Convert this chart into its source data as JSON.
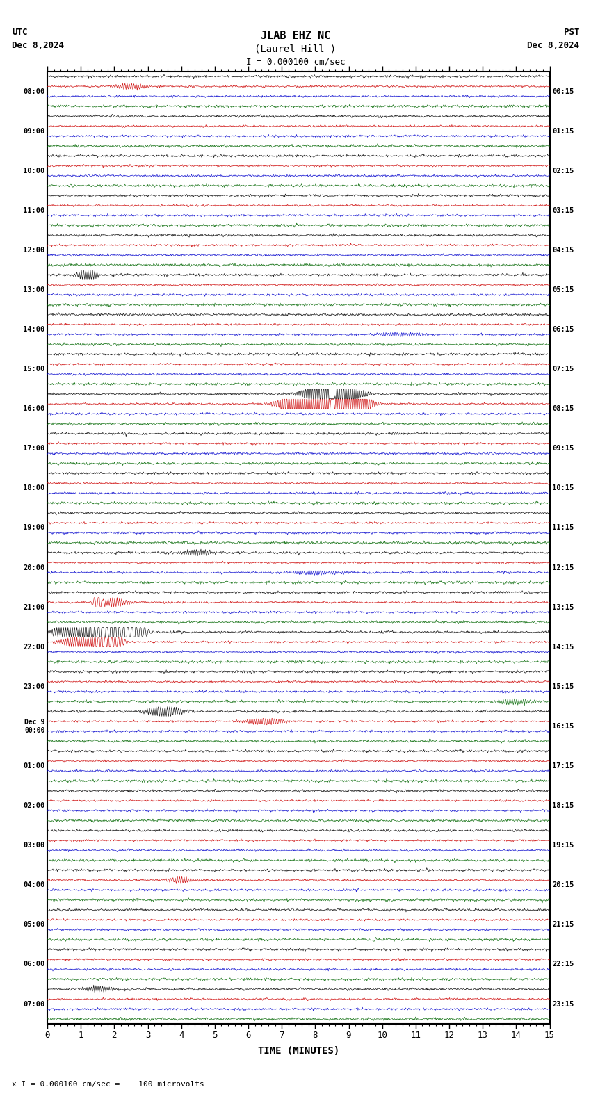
{
  "title_line1": "JLAB EHZ NC",
  "title_line2": "(Laurel Hill )",
  "scale_label": "I = 0.000100 cm/sec",
  "left_label": "UTC",
  "left_date": "Dec 8,2024",
  "right_label": "PST",
  "right_date": "Dec 8,2024",
  "xlabel": "TIME (MINUTES)",
  "bottom_note": "x I = 0.000100 cm/sec =    100 microvolts",
  "utc_times": [
    "08:00",
    "09:00",
    "10:00",
    "11:00",
    "12:00",
    "13:00",
    "14:00",
    "15:00",
    "16:00",
    "17:00",
    "18:00",
    "19:00",
    "20:00",
    "21:00",
    "22:00",
    "23:00",
    "Dec 9\n00:00",
    "01:00",
    "02:00",
    "03:00",
    "04:00",
    "05:00",
    "06:00",
    "07:00"
  ],
  "pst_times": [
    "00:15",
    "01:15",
    "02:15",
    "03:15",
    "04:15",
    "05:15",
    "06:15",
    "07:15",
    "08:15",
    "09:15",
    "10:15",
    "11:15",
    "12:15",
    "13:15",
    "14:15",
    "15:15",
    "16:15",
    "17:15",
    "18:15",
    "19:15",
    "20:15",
    "21:15",
    "22:15",
    "23:15"
  ],
  "colors": [
    "#000000",
    "#cc0000",
    "#0000cc",
    "#006600"
  ],
  "bg_color": "#ffffff",
  "n_rows": 24,
  "n_channels": 4,
  "x_min": 0,
  "x_max": 15,
  "noise_scale": 0.15,
  "seed": 42,
  "figsize": [
    8.5,
    15.84
  ],
  "dpi": 100
}
